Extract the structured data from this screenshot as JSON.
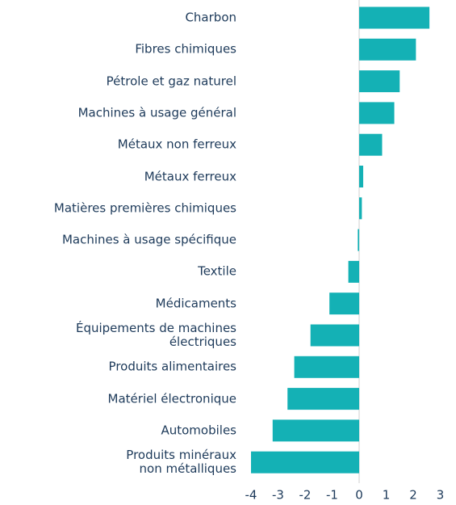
{
  "chart_data": {
    "type": "bar",
    "orientation": "horizontal",
    "categories": [
      "Charbon",
      "Fibres chimiques",
      "Pétrole et gaz naturel",
      "Machines à usage général",
      "Métaux non ferreux",
      "Métaux ferreux",
      "Matières premières chimiques",
      "Machines à usage spécifique",
      "Textile",
      "Médicaments",
      "Équipements de machines\nélectriques",
      "Produits alimentaires",
      "Matériel électronique",
      "Automobiles",
      "Produits minéraux\nnon métalliques"
    ],
    "values": [
      2.6,
      2.1,
      1.5,
      1.3,
      0.85,
      0.15,
      0.1,
      -0.05,
      -0.4,
      -1.1,
      -1.8,
      -2.4,
      -2.65,
      -3.2,
      -4.0
    ],
    "color": "#14b1b5",
    "xlim": [
      -4.2,
      3.3
    ],
    "xticks": [
      -4,
      -3,
      -2,
      -1,
      0,
      1,
      2,
      3
    ],
    "grid": false
  }
}
